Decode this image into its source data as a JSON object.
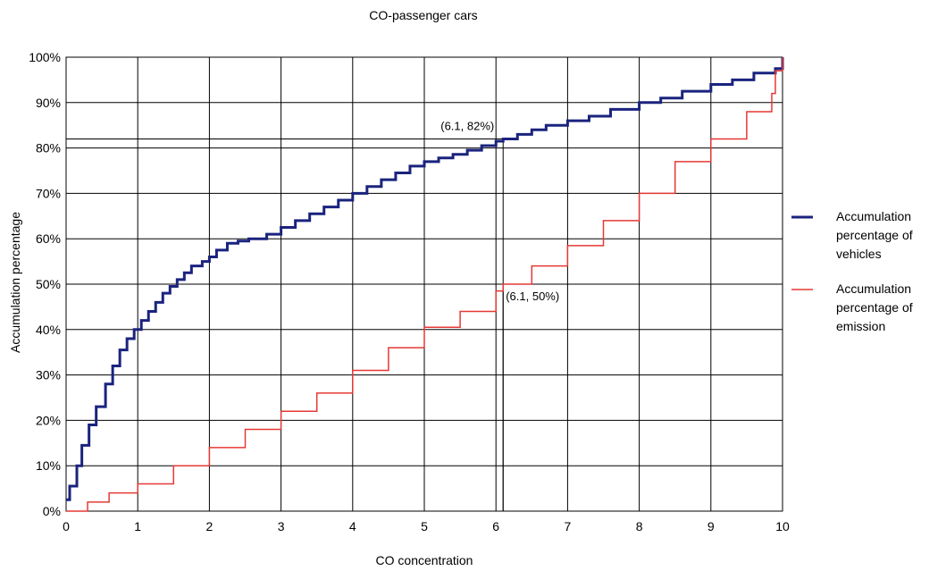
{
  "chart_data": {
    "type": "line",
    "title": "CO-passenger cars",
    "xlabel": "CO concentration",
    "ylabel": "Accumulation percentage",
    "xlim": [
      0,
      10
    ],
    "ylim": [
      0,
      100
    ],
    "x_ticks": [
      "0",
      "1",
      "2",
      "3",
      "4",
      "5",
      "6",
      "7",
      "8",
      "9",
      "10"
    ],
    "y_ticks": [
      "0%",
      "10%",
      "20%",
      "30%",
      "40%",
      "50%",
      "60%",
      "70%",
      "80%",
      "90%",
      "100%"
    ],
    "grid": true,
    "legend_position": "right",
    "series": [
      {
        "name": "Accumulation percentage of vehicles",
        "color": "#1a237e",
        "step": true,
        "x": [
          0,
          0.05,
          0.15,
          0.22,
          0.32,
          0.42,
          0.55,
          0.65,
          0.75,
          0.85,
          0.95,
          1.05,
          1.15,
          1.25,
          1.35,
          1.45,
          1.55,
          1.65,
          1.75,
          1.9,
          2.0,
          2.1,
          2.25,
          2.4,
          2.55,
          2.65,
          2.8,
          3.0,
          3.2,
          3.4,
          3.6,
          3.8,
          4.0,
          4.2,
          4.4,
          4.6,
          4.8,
          5.0,
          5.2,
          5.4,
          5.6,
          5.8,
          6.0,
          6.1,
          6.3,
          6.5,
          6.7,
          7.0,
          7.3,
          7.6,
          8.0,
          8.3,
          8.6,
          9.0,
          9.3,
          9.6,
          9.9,
          10.0
        ],
        "y": [
          2.5,
          5.5,
          10,
          14.5,
          19,
          23,
          28,
          32,
          35.5,
          38,
          40,
          42,
          44,
          46,
          48,
          49.5,
          51,
          52.5,
          54,
          55,
          56,
          57.5,
          59,
          59.5,
          60,
          60,
          61,
          62.5,
          64,
          65.5,
          67,
          68.5,
          70,
          71.5,
          73,
          74.5,
          76,
          77,
          77.8,
          78.6,
          79.5,
          80.5,
          81.5,
          82,
          83,
          84,
          85,
          86,
          87,
          88.5,
          90,
          91,
          92.5,
          94,
          95,
          96.5,
          97.5,
          100
        ]
      },
      {
        "name": "Accumulation percentage of emission",
        "color": "#e53935",
        "step": true,
        "x": [
          0,
          0.3,
          0.6,
          1.0,
          1.5,
          2.0,
          2.5,
          3.0,
          3.5,
          4.0,
          4.5,
          5.0,
          5.5,
          6.0,
          6.1,
          6.5,
          7.0,
          7.5,
          8.0,
          8.5,
          9.0,
          9.5,
          9.85,
          9.9,
          10.0
        ],
        "y": [
          0,
          2,
          4,
          6,
          10,
          14,
          18,
          22,
          26,
          31,
          36,
          40.5,
          44,
          48.5,
          50,
          54,
          58.5,
          64,
          70,
          77,
          82,
          88,
          92,
          97,
          100
        ]
      }
    ],
    "annotations": [
      {
        "text": "(6.1, 82%)",
        "x": 6.1,
        "y": 82
      },
      {
        "text": "(6.1, 50%)",
        "x": 6.1,
        "y": 50
      }
    ]
  }
}
